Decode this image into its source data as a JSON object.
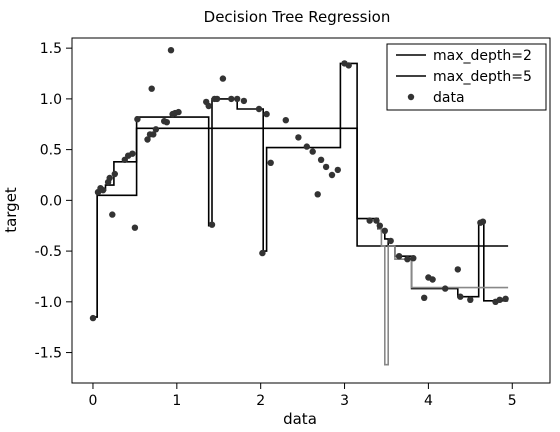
{
  "chart_data": {
    "type": "line",
    "title": "Decision Tree Regression",
    "xlabel": "data",
    "ylabel": "target",
    "xlim": [
      -0.25,
      5.45
    ],
    "ylim": [
      -1.8,
      1.6
    ],
    "xticks": [
      "0",
      "1",
      "2",
      "3",
      "4",
      "5"
    ],
    "xtick_values": [
      0,
      1,
      2,
      3,
      4,
      5
    ],
    "yticks": [
      "-1.5",
      "-1.0",
      "-0.5",
      "0.0",
      "0.5",
      "1.0",
      "1.5"
    ],
    "ytick_values": [
      -1.5,
      -1.0,
      -0.5,
      0.0,
      0.5,
      1.0,
      1.5
    ],
    "grid": false,
    "legend": {
      "placement": "top-right"
    },
    "series": [
      {
        "name": "max_depth=2",
        "kind": "line",
        "color": "#000000",
        "x": [
          0.0,
          0.05,
          0.05,
          0.52,
          0.52,
          3.15,
          3.15,
          4.95
        ],
        "y": [
          -1.15,
          -1.15,
          0.05,
          0.05,
          0.71,
          0.71,
          -0.45,
          -0.45
        ]
      },
      {
        "name": "max_depth=5",
        "kind": "line",
        "color": "#000000",
        "x": [
          0.0,
          0.05,
          0.05,
          0.15,
          0.15,
          0.25,
          0.25,
          0.32,
          0.32,
          0.52,
          0.52,
          0.7,
          0.7,
          0.85,
          0.85,
          1.38,
          1.38,
          1.42,
          1.42,
          1.45,
          1.45,
          1.6,
          1.6,
          1.72,
          1.72,
          1.87,
          1.87,
          2.03,
          2.03,
          2.07,
          2.07,
          2.1,
          2.1,
          2.25,
          2.25,
          2.5,
          2.5,
          2.95,
          2.95,
          3.15,
          3.15,
          3.3,
          3.3,
          3.4,
          3.4,
          3.44,
          3.44,
          3.48,
          3.48,
          3.52,
          3.52,
          3.6,
          3.6,
          3.8,
          3.8,
          3.88,
          3.88,
          4.05,
          4.05,
          4.35,
          4.35,
          4.48,
          4.48,
          4.6,
          4.6,
          4.66,
          4.66,
          4.75,
          4.75,
          4.95
        ],
        "y": [
          -1.15,
          -1.15,
          0.1,
          0.1,
          0.15,
          0.15,
          0.38,
          0.38,
          0.38,
          0.38,
          0.82,
          0.82,
          0.82,
          0.82,
          0.82,
          0.82,
          -0.25,
          -0.25,
          1.0,
          1.0,
          1.0,
          1.0,
          1.0,
          1.0,
          0.9,
          0.9,
          0.9,
          0.9,
          -0.5,
          -0.5,
          0.52,
          0.52,
          0.52,
          0.52,
          0.52,
          0.52,
          0.52,
          0.52,
          1.35,
          1.35,
          -0.18,
          -0.18,
          -0.18,
          -0.18,
          -0.28,
          -0.28,
          -0.3,
          -0.3,
          -0.38,
          -0.38,
          -0.45,
          -0.45,
          -0.55,
          -0.55,
          -0.87,
          -0.87,
          -0.87,
          -0.87,
          -0.87,
          -0.87,
          -0.95,
          -0.95,
          -0.95,
          -0.95,
          -0.22,
          -0.22,
          -0.99,
          -0.99,
          -0.99,
          -0.99
        ]
      },
      {
        "name": "",
        "kind": "line",
        "color": "#888888",
        "x": [
          3.4,
          3.44,
          3.44,
          3.48,
          3.48,
          3.52,
          3.52,
          3.6,
          3.6,
          3.8,
          3.8,
          4.0,
          4.0,
          4.95
        ],
        "y": [
          -0.28,
          -0.28,
          -0.45,
          -0.45,
          -1.62,
          -1.62,
          -0.45,
          -0.45,
          -0.58,
          -0.58,
          -0.86,
          -0.86,
          -0.86,
          -0.86
        ]
      },
      {
        "name": "data",
        "kind": "scatter",
        "color": "#333333",
        "x": [
          0.0,
          0.06,
          0.09,
          0.12,
          0.18,
          0.2,
          0.23,
          0.26,
          0.38,
          0.42,
          0.47,
          0.5,
          0.53,
          0.65,
          0.68,
          0.7,
          0.72,
          0.75,
          0.85,
          0.88,
          0.93,
          0.95,
          0.98,
          1.02,
          1.35,
          1.38,
          1.42,
          1.45,
          1.48,
          1.55,
          1.65,
          1.72,
          1.8,
          1.98,
          2.02,
          2.07,
          2.12,
          2.3,
          2.45,
          2.55,
          2.62,
          2.68,
          2.72,
          2.78,
          2.85,
          2.92,
          3.0,
          3.05,
          3.3,
          3.38,
          3.42,
          3.48,
          3.55,
          3.65,
          3.75,
          3.82,
          3.95,
          4.0,
          4.05,
          4.2,
          4.35,
          4.38,
          4.5,
          4.62,
          4.65,
          4.8,
          4.85,
          4.92
        ],
        "y": [
          -1.16,
          0.08,
          0.12,
          0.1,
          0.18,
          0.22,
          -0.14,
          0.26,
          0.4,
          0.44,
          0.46,
          -0.27,
          0.8,
          0.6,
          0.65,
          1.1,
          0.65,
          0.7,
          0.78,
          0.77,
          1.48,
          0.85,
          0.86,
          0.87,
          0.97,
          0.93,
          -0.24,
          1.0,
          1.0,
          1.2,
          1.0,
          1.0,
          0.98,
          0.9,
          -0.52,
          0.85,
          0.37,
          0.79,
          0.62,
          0.53,
          0.48,
          0.06,
          0.4,
          0.33,
          0.25,
          0.3,
          1.35,
          1.33,
          -0.2,
          -0.2,
          -0.25,
          -0.3,
          -0.4,
          -0.55,
          -0.58,
          -0.57,
          -0.96,
          -0.76,
          -0.78,
          -0.87,
          -0.68,
          -0.95,
          -0.98,
          -0.22,
          -0.21,
          -1.0,
          -0.98,
          -0.97
        ]
      }
    ]
  }
}
